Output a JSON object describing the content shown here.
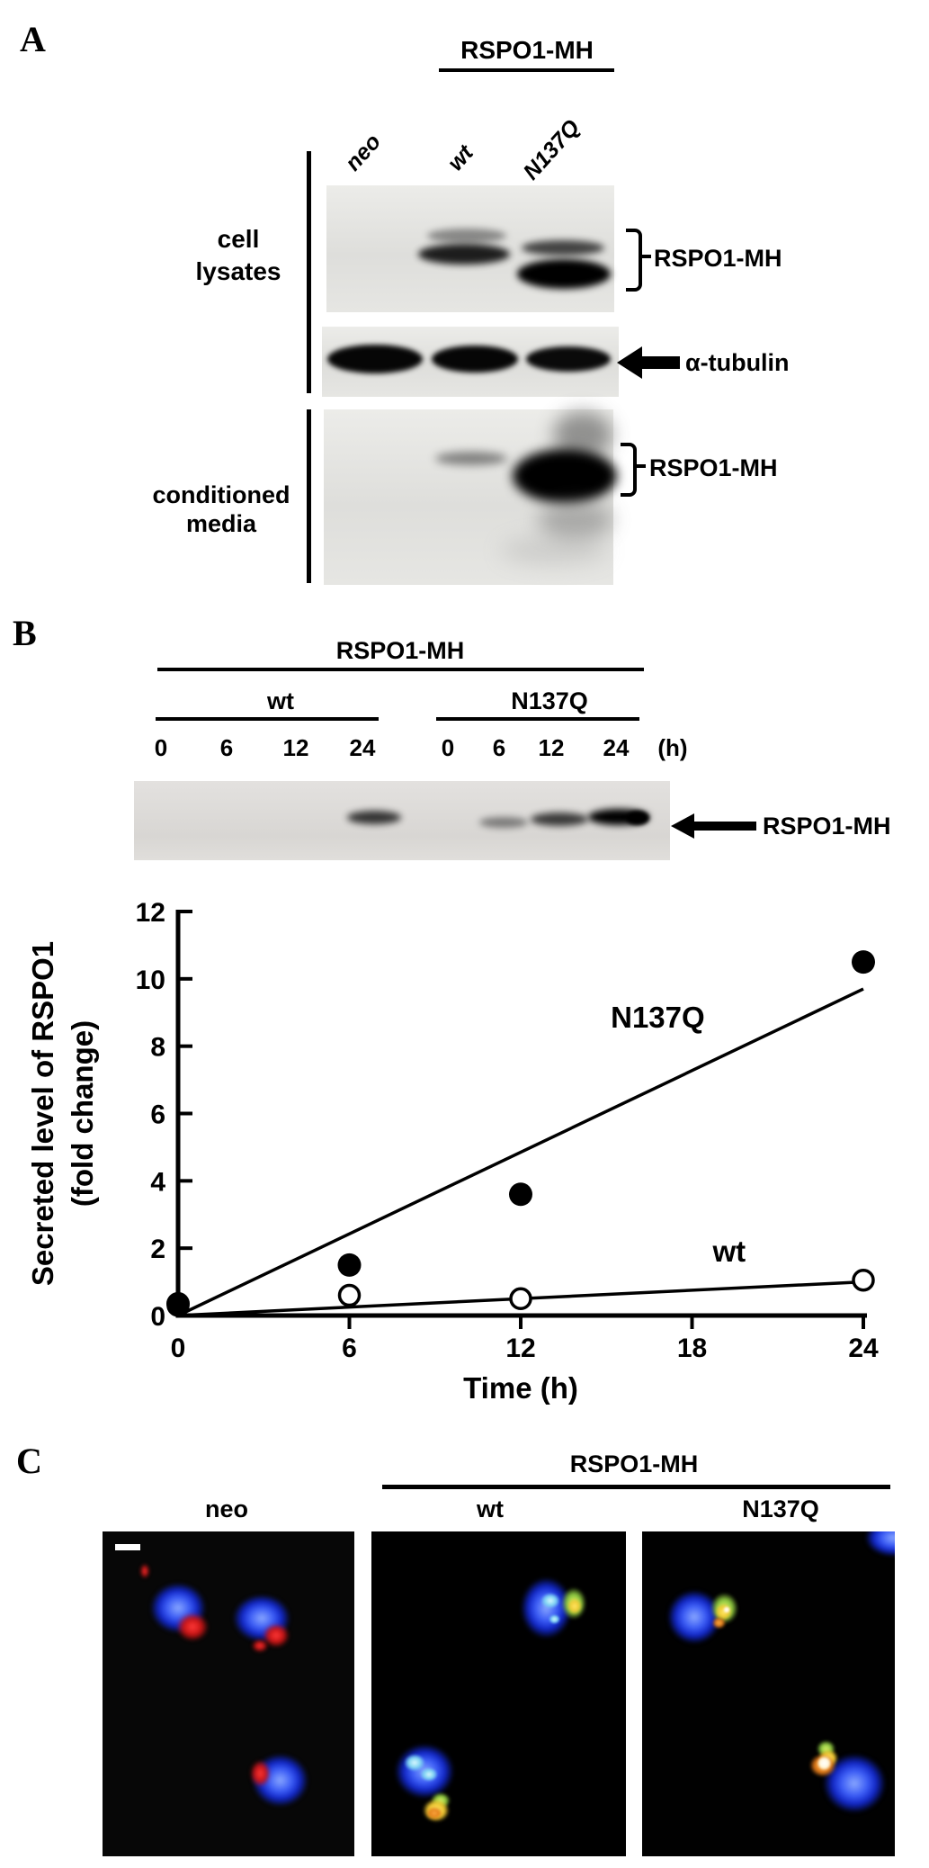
{
  "panelA": {
    "label": "A",
    "header": "RSPO1-MH",
    "lanes": [
      "neo",
      "wt",
      "N137Q"
    ],
    "side_labels": {
      "cell_lysates": [
        "cell",
        "lysates"
      ],
      "conditioned_media": [
        "conditioned",
        "media"
      ]
    },
    "annotations": {
      "lysates_bracket_label": "RSPO1-MH",
      "tubulin_label": "α-tubulin",
      "media_bracket_label": "RSPO1-MH"
    },
    "blots": {
      "cell_lysates_bands": [
        {
          "lane": "wt",
          "pattern": "doublet",
          "intensity": "medium"
        },
        {
          "lane": "N137Q",
          "pattern": "doublet",
          "intensity": "strong"
        }
      ],
      "tubulin_bands": [
        {
          "lane": "neo",
          "intensity": "strong"
        },
        {
          "lane": "wt",
          "intensity": "strong"
        },
        {
          "lane": "N137Q",
          "intensity": "strong"
        }
      ],
      "media_bands": [
        {
          "lane": "wt",
          "intensity": "weak"
        },
        {
          "lane": "N137Q",
          "intensity": "very strong"
        }
      ]
    }
  },
  "panelB": {
    "label": "B",
    "header": "RSPO1-MH",
    "groups": [
      {
        "name": "wt",
        "times": [
          "0",
          "6",
          "12",
          "24"
        ]
      },
      {
        "name": "N137Q",
        "times": [
          "0",
          "6",
          "12",
          "24"
        ]
      }
    ],
    "time_unit": "(h)",
    "arrow_label": "RSPO1-MH",
    "blot_bands": [
      {
        "lane": "wt 24h",
        "intensity": "medium"
      },
      {
        "lane": "N137Q 6h",
        "intensity": "weak"
      },
      {
        "lane": "N137Q 12h",
        "intensity": "medium"
      },
      {
        "lane": "N137Q 24h",
        "intensity": "strong"
      }
    ]
  },
  "chart_data": {
    "type": "scatter",
    "title": "",
    "xlabel": "Time (h)",
    "ylabel_lines": [
      "Secreted level of RSPO1",
      "(fold change)"
    ],
    "xlim": [
      0,
      24
    ],
    "ylim": [
      0,
      12
    ],
    "x_ticks": [
      0,
      6,
      12,
      18,
      24
    ],
    "y_ticks": [
      0,
      2,
      4,
      6,
      8,
      10,
      12
    ],
    "grid": false,
    "legend": "inline-labels",
    "series": [
      {
        "name": "wt",
        "marker": "circle-open",
        "x": [
          0,
          6,
          12,
          24
        ],
        "y": [
          0.3,
          0.6,
          0.5,
          1.05
        ],
        "trend_x": [
          0,
          24
        ],
        "trend_y": [
          0,
          1.0
        ],
        "label_x": 19.3,
        "label_y": 1.9
      },
      {
        "name": "N137Q",
        "marker": "circle-filled",
        "x": [
          0,
          6,
          12,
          24
        ],
        "y": [
          0.35,
          1.5,
          3.6,
          10.5
        ],
        "trend_x": [
          0,
          24
        ],
        "trend_y": [
          0,
          9.7
        ],
        "label_x": 16.8,
        "label_y": 8.85
      }
    ]
  },
  "panelC": {
    "label": "C",
    "header": "RSPO1-MH",
    "images": [
      {
        "label": "neo",
        "signal": "red puncta"
      },
      {
        "label": "wt",
        "signal": "green puncta"
      },
      {
        "label": "N137Q",
        "signal": "green-orange puncta"
      }
    ]
  }
}
